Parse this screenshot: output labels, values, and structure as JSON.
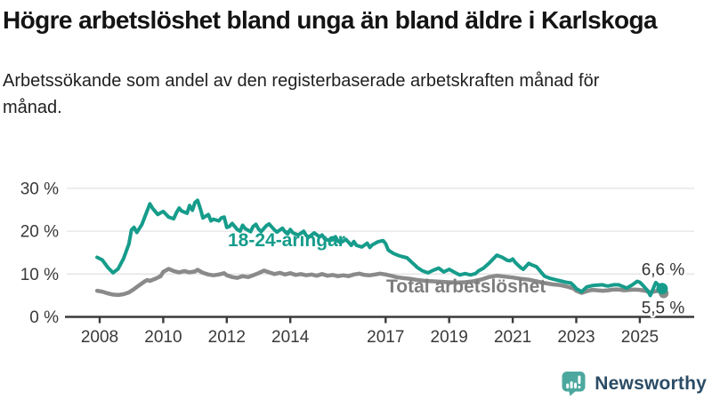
{
  "header": {
    "title": "Högre arbetslöshet bland unga än bland äldre i Karlskoga",
    "subtitle": "Arbetssökande som andel av den registerbaserade arbetskraften månad för månad."
  },
  "footer": {
    "brand": "Newsworthy",
    "brand_color": "#2b4c66",
    "icon": "newsworthy-chart-bubble-icon",
    "icon_color": "#4ca89f"
  },
  "chart_data": {
    "type": "line",
    "title": "Högre arbetslöshet bland unga än bland äldre i Karlskoga",
    "xlabel": "",
    "ylabel": "",
    "unit": "%",
    "grid": "horizontal",
    "legend_position": "inline-labels",
    "xlim": [
      2007,
      2026.5
    ],
    "ylim": [
      0,
      31
    ],
    "x_ticks": [
      {
        "value": 2008,
        "label": "2008"
      },
      {
        "value": 2010,
        "label": "2010"
      },
      {
        "value": 2012,
        "label": "2012"
      },
      {
        "value": 2014,
        "label": "2014"
      },
      {
        "value": 2017,
        "label": "2017"
      },
      {
        "value": 2019,
        "label": "2019"
      },
      {
        "value": 2021,
        "label": "2021"
      },
      {
        "value": 2023,
        "label": "2023"
      },
      {
        "value": 2025,
        "label": "2025"
      }
    ],
    "y_ticks": [
      {
        "value": 0,
        "label": "0 %"
      },
      {
        "value": 10,
        "label": "10 %"
      },
      {
        "value": 20,
        "label": "20 %"
      },
      {
        "value": 30,
        "label": "30 %"
      }
    ],
    "axis_color": "#3a3a3a",
    "grid_color": "#e3e3e3",
    "series": [
      {
        "name": "Total arbetslöshet",
        "inline_label": "Total arbetslöshet",
        "color": "#8a8a8a",
        "label_color": "#7d7d7d",
        "line_width": 4.5,
        "end_value": 5.5,
        "end_label": "5,5 %",
        "points": [
          [
            2007.92,
            6.1
          ],
          [
            2008.08,
            5.9
          ],
          [
            2008.25,
            5.5
          ],
          [
            2008.42,
            5.2
          ],
          [
            2008.58,
            5.1
          ],
          [
            2008.75,
            5.3
          ],
          [
            2008.92,
            5.7
          ],
          [
            2009.08,
            6.5
          ],
          [
            2009.25,
            7.4
          ],
          [
            2009.42,
            8.3
          ],
          [
            2009.5,
            8.6
          ],
          [
            2009.58,
            8.4
          ],
          [
            2009.75,
            8.9
          ],
          [
            2009.92,
            9.5
          ],
          [
            2010.0,
            10.5
          ],
          [
            2010.17,
            11.2
          ],
          [
            2010.33,
            10.7
          ],
          [
            2010.5,
            10.4
          ],
          [
            2010.67,
            10.7
          ],
          [
            2010.83,
            10.4
          ],
          [
            2011.0,
            10.6
          ],
          [
            2011.08,
            11.0
          ],
          [
            2011.25,
            10.3
          ],
          [
            2011.42,
            9.9
          ],
          [
            2011.58,
            9.7
          ],
          [
            2011.75,
            9.9
          ],
          [
            2011.92,
            10.2
          ],
          [
            2012.0,
            9.7
          ],
          [
            2012.17,
            9.3
          ],
          [
            2012.33,
            9.1
          ],
          [
            2012.5,
            9.5
          ],
          [
            2012.67,
            9.3
          ],
          [
            2012.83,
            9.7
          ],
          [
            2013.0,
            10.2
          ],
          [
            2013.17,
            10.8
          ],
          [
            2013.33,
            10.4
          ],
          [
            2013.5,
            10.0
          ],
          [
            2013.67,
            10.3
          ],
          [
            2013.83,
            9.9
          ],
          [
            2014.0,
            10.2
          ],
          [
            2014.17,
            9.8
          ],
          [
            2014.33,
            10.0
          ],
          [
            2014.5,
            9.7
          ],
          [
            2014.67,
            9.9
          ],
          [
            2014.83,
            9.6
          ],
          [
            2015.0,
            10.0
          ],
          [
            2015.17,
            9.6
          ],
          [
            2015.33,
            9.8
          ],
          [
            2015.5,
            9.5
          ],
          [
            2015.67,
            9.7
          ],
          [
            2015.83,
            9.5
          ],
          [
            2016.0,
            9.9
          ],
          [
            2016.17,
            10.1
          ],
          [
            2016.33,
            9.8
          ],
          [
            2016.5,
            9.7
          ],
          [
            2016.67,
            9.9
          ],
          [
            2016.83,
            10.1
          ],
          [
            2017.0,
            9.9
          ],
          [
            2017.17,
            9.6
          ],
          [
            2017.33,
            9.3
          ],
          [
            2017.5,
            9.1
          ],
          [
            2017.75,
            8.9
          ],
          [
            2018.0,
            8.6
          ],
          [
            2018.25,
            8.4
          ],
          [
            2018.5,
            8.3
          ],
          [
            2018.75,
            8.2
          ],
          [
            2019.0,
            8.1
          ],
          [
            2019.25,
            8.0
          ],
          [
            2019.5,
            8.1
          ],
          [
            2019.75,
            8.3
          ],
          [
            2020.0,
            8.7
          ],
          [
            2020.25,
            9.3
          ],
          [
            2020.5,
            9.6
          ],
          [
            2020.75,
            9.4
          ],
          [
            2021.0,
            9.2
          ],
          [
            2021.25,
            8.9
          ],
          [
            2021.5,
            8.7
          ],
          [
            2021.75,
            8.3
          ],
          [
            2022.0,
            7.9
          ],
          [
            2022.25,
            7.6
          ],
          [
            2022.5,
            7.4
          ],
          [
            2022.75,
            7.0
          ],
          [
            2022.92,
            6.6
          ],
          [
            2023.0,
            6.1
          ],
          [
            2023.17,
            5.6
          ],
          [
            2023.33,
            6.0
          ],
          [
            2023.5,
            6.3
          ],
          [
            2023.67,
            6.2
          ],
          [
            2023.83,
            6.1
          ],
          [
            2024.0,
            6.2
          ],
          [
            2024.17,
            6.4
          ],
          [
            2024.33,
            6.4
          ],
          [
            2024.5,
            6.2
          ],
          [
            2024.67,
            6.3
          ],
          [
            2024.83,
            6.4
          ],
          [
            2025.0,
            6.3
          ],
          [
            2025.17,
            6.1
          ],
          [
            2025.33,
            5.7
          ],
          [
            2025.5,
            6.0
          ],
          [
            2025.62,
            6.1
          ],
          [
            2025.75,
            5.5
          ]
        ]
      },
      {
        "name": "18-24-åringar",
        "inline_label": "18-24-åringar",
        "color": "#169c8b",
        "label_color": "#169c8b",
        "line_width": 4,
        "end_value": 6.6,
        "end_label": "6,6 %",
        "points": [
          [
            2007.92,
            13.9
          ],
          [
            2008.08,
            13.3
          ],
          [
            2008.25,
            11.6
          ],
          [
            2008.42,
            10.3
          ],
          [
            2008.58,
            11.2
          ],
          [
            2008.75,
            13.6
          ],
          [
            2008.92,
            17.0
          ],
          [
            2009.0,
            20.3
          ],
          [
            2009.08,
            20.9
          ],
          [
            2009.17,
            19.7
          ],
          [
            2009.33,
            21.6
          ],
          [
            2009.5,
            24.9
          ],
          [
            2009.58,
            26.4
          ],
          [
            2009.67,
            25.3
          ],
          [
            2009.83,
            23.9
          ],
          [
            2009.92,
            24.3
          ],
          [
            2010.0,
            24.6
          ],
          [
            2010.17,
            23.3
          ],
          [
            2010.33,
            22.9
          ],
          [
            2010.42,
            24.4
          ],
          [
            2010.5,
            25.4
          ],
          [
            2010.58,
            24.7
          ],
          [
            2010.75,
            24.2
          ],
          [
            2010.83,
            26.0
          ],
          [
            2010.92,
            24.9
          ],
          [
            2011.0,
            26.7
          ],
          [
            2011.08,
            27.2
          ],
          [
            2011.17,
            25.2
          ],
          [
            2011.25,
            23.1
          ],
          [
            2011.42,
            23.9
          ],
          [
            2011.5,
            22.4
          ],
          [
            2011.58,
            22.8
          ],
          [
            2011.75,
            22.4
          ],
          [
            2011.83,
            23.1
          ],
          [
            2011.92,
            23.3
          ],
          [
            2012.0,
            20.9
          ],
          [
            2012.08,
            21.1
          ],
          [
            2012.17,
            21.8
          ],
          [
            2012.33,
            20.4
          ],
          [
            2012.42,
            20.0
          ],
          [
            2012.5,
            21.4
          ],
          [
            2012.58,
            20.6
          ],
          [
            2012.75,
            19.9
          ],
          [
            2012.83,
            21.1
          ],
          [
            2012.92,
            21.6
          ],
          [
            2013.0,
            20.5
          ],
          [
            2013.08,
            19.9
          ],
          [
            2013.25,
            21.3
          ],
          [
            2013.33,
            21.7
          ],
          [
            2013.5,
            20.3
          ],
          [
            2013.58,
            19.8
          ],
          [
            2013.75,
            20.7
          ],
          [
            2013.83,
            19.9
          ],
          [
            2013.92,
            19.4
          ],
          [
            2014.0,
            20.4
          ],
          [
            2014.08,
            19.6
          ],
          [
            2014.25,
            19.1
          ],
          [
            2014.42,
            20.0
          ],
          [
            2014.5,
            19.0
          ],
          [
            2014.58,
            18.6
          ],
          [
            2014.75,
            19.6
          ],
          [
            2014.92,
            18.7
          ],
          [
            2015.0,
            19.1
          ],
          [
            2015.08,
            18.2
          ],
          [
            2015.25,
            17.8
          ],
          [
            2015.42,
            18.7
          ],
          [
            2015.5,
            17.7
          ],
          [
            2015.58,
            17.3
          ],
          [
            2015.75,
            18.1
          ],
          [
            2015.92,
            16.7
          ],
          [
            2016.0,
            17.6
          ],
          [
            2016.08,
            16.7
          ],
          [
            2016.25,
            16.3
          ],
          [
            2016.42,
            17.2
          ],
          [
            2016.5,
            16.2
          ],
          [
            2016.58,
            16.8
          ],
          [
            2016.75,
            17.5
          ],
          [
            2016.92,
            17.8
          ],
          [
            2017.0,
            17.1
          ],
          [
            2017.08,
            15.6
          ],
          [
            2017.25,
            14.8
          ],
          [
            2017.42,
            14.3
          ],
          [
            2017.5,
            14.1
          ],
          [
            2017.67,
            13.8
          ],
          [
            2017.83,
            12.7
          ],
          [
            2017.92,
            12.1
          ],
          [
            2018.0,
            11.5
          ],
          [
            2018.17,
            10.7
          ],
          [
            2018.33,
            10.3
          ],
          [
            2018.5,
            10.9
          ],
          [
            2018.67,
            11.4
          ],
          [
            2018.83,
            10.5
          ],
          [
            2019.0,
            11.1
          ],
          [
            2019.17,
            10.4
          ],
          [
            2019.33,
            9.8
          ],
          [
            2019.5,
            10.1
          ],
          [
            2019.67,
            9.8
          ],
          [
            2019.83,
            10.1
          ],
          [
            2019.92,
            10.7
          ],
          [
            2020.08,
            11.4
          ],
          [
            2020.25,
            12.5
          ],
          [
            2020.42,
            13.8
          ],
          [
            2020.5,
            14.4
          ],
          [
            2020.67,
            13.9
          ],
          [
            2020.83,
            13.2
          ],
          [
            2020.92,
            13.1
          ],
          [
            2021.0,
            13.5
          ],
          [
            2021.08,
            12.7
          ],
          [
            2021.25,
            11.5
          ],
          [
            2021.33,
            11.1
          ],
          [
            2021.5,
            12.5
          ],
          [
            2021.58,
            12.2
          ],
          [
            2021.75,
            11.7
          ],
          [
            2021.92,
            10.2
          ],
          [
            2022.0,
            9.5
          ],
          [
            2022.17,
            9.0
          ],
          [
            2022.33,
            8.7
          ],
          [
            2022.5,
            8.4
          ],
          [
            2022.67,
            8.1
          ],
          [
            2022.83,
            7.9
          ],
          [
            2022.92,
            7.3
          ],
          [
            2023.0,
            6.6
          ],
          [
            2023.17,
            5.9
          ],
          [
            2023.33,
            7.0
          ],
          [
            2023.5,
            7.3
          ],
          [
            2023.67,
            7.4
          ],
          [
            2023.83,
            7.5
          ],
          [
            2023.92,
            7.3
          ],
          [
            2024.0,
            7.2
          ],
          [
            2024.17,
            7.5
          ],
          [
            2024.33,
            7.5
          ],
          [
            2024.5,
            7.0
          ],
          [
            2024.58,
            6.7
          ],
          [
            2024.75,
            7.4
          ],
          [
            2024.92,
            8.3
          ],
          [
            2025.0,
            8.1
          ],
          [
            2025.08,
            7.5
          ],
          [
            2025.25,
            6.1
          ],
          [
            2025.33,
            5.0
          ],
          [
            2025.5,
            8.0
          ],
          [
            2025.58,
            7.5
          ],
          [
            2025.7,
            6.6
          ]
        ]
      }
    ]
  }
}
